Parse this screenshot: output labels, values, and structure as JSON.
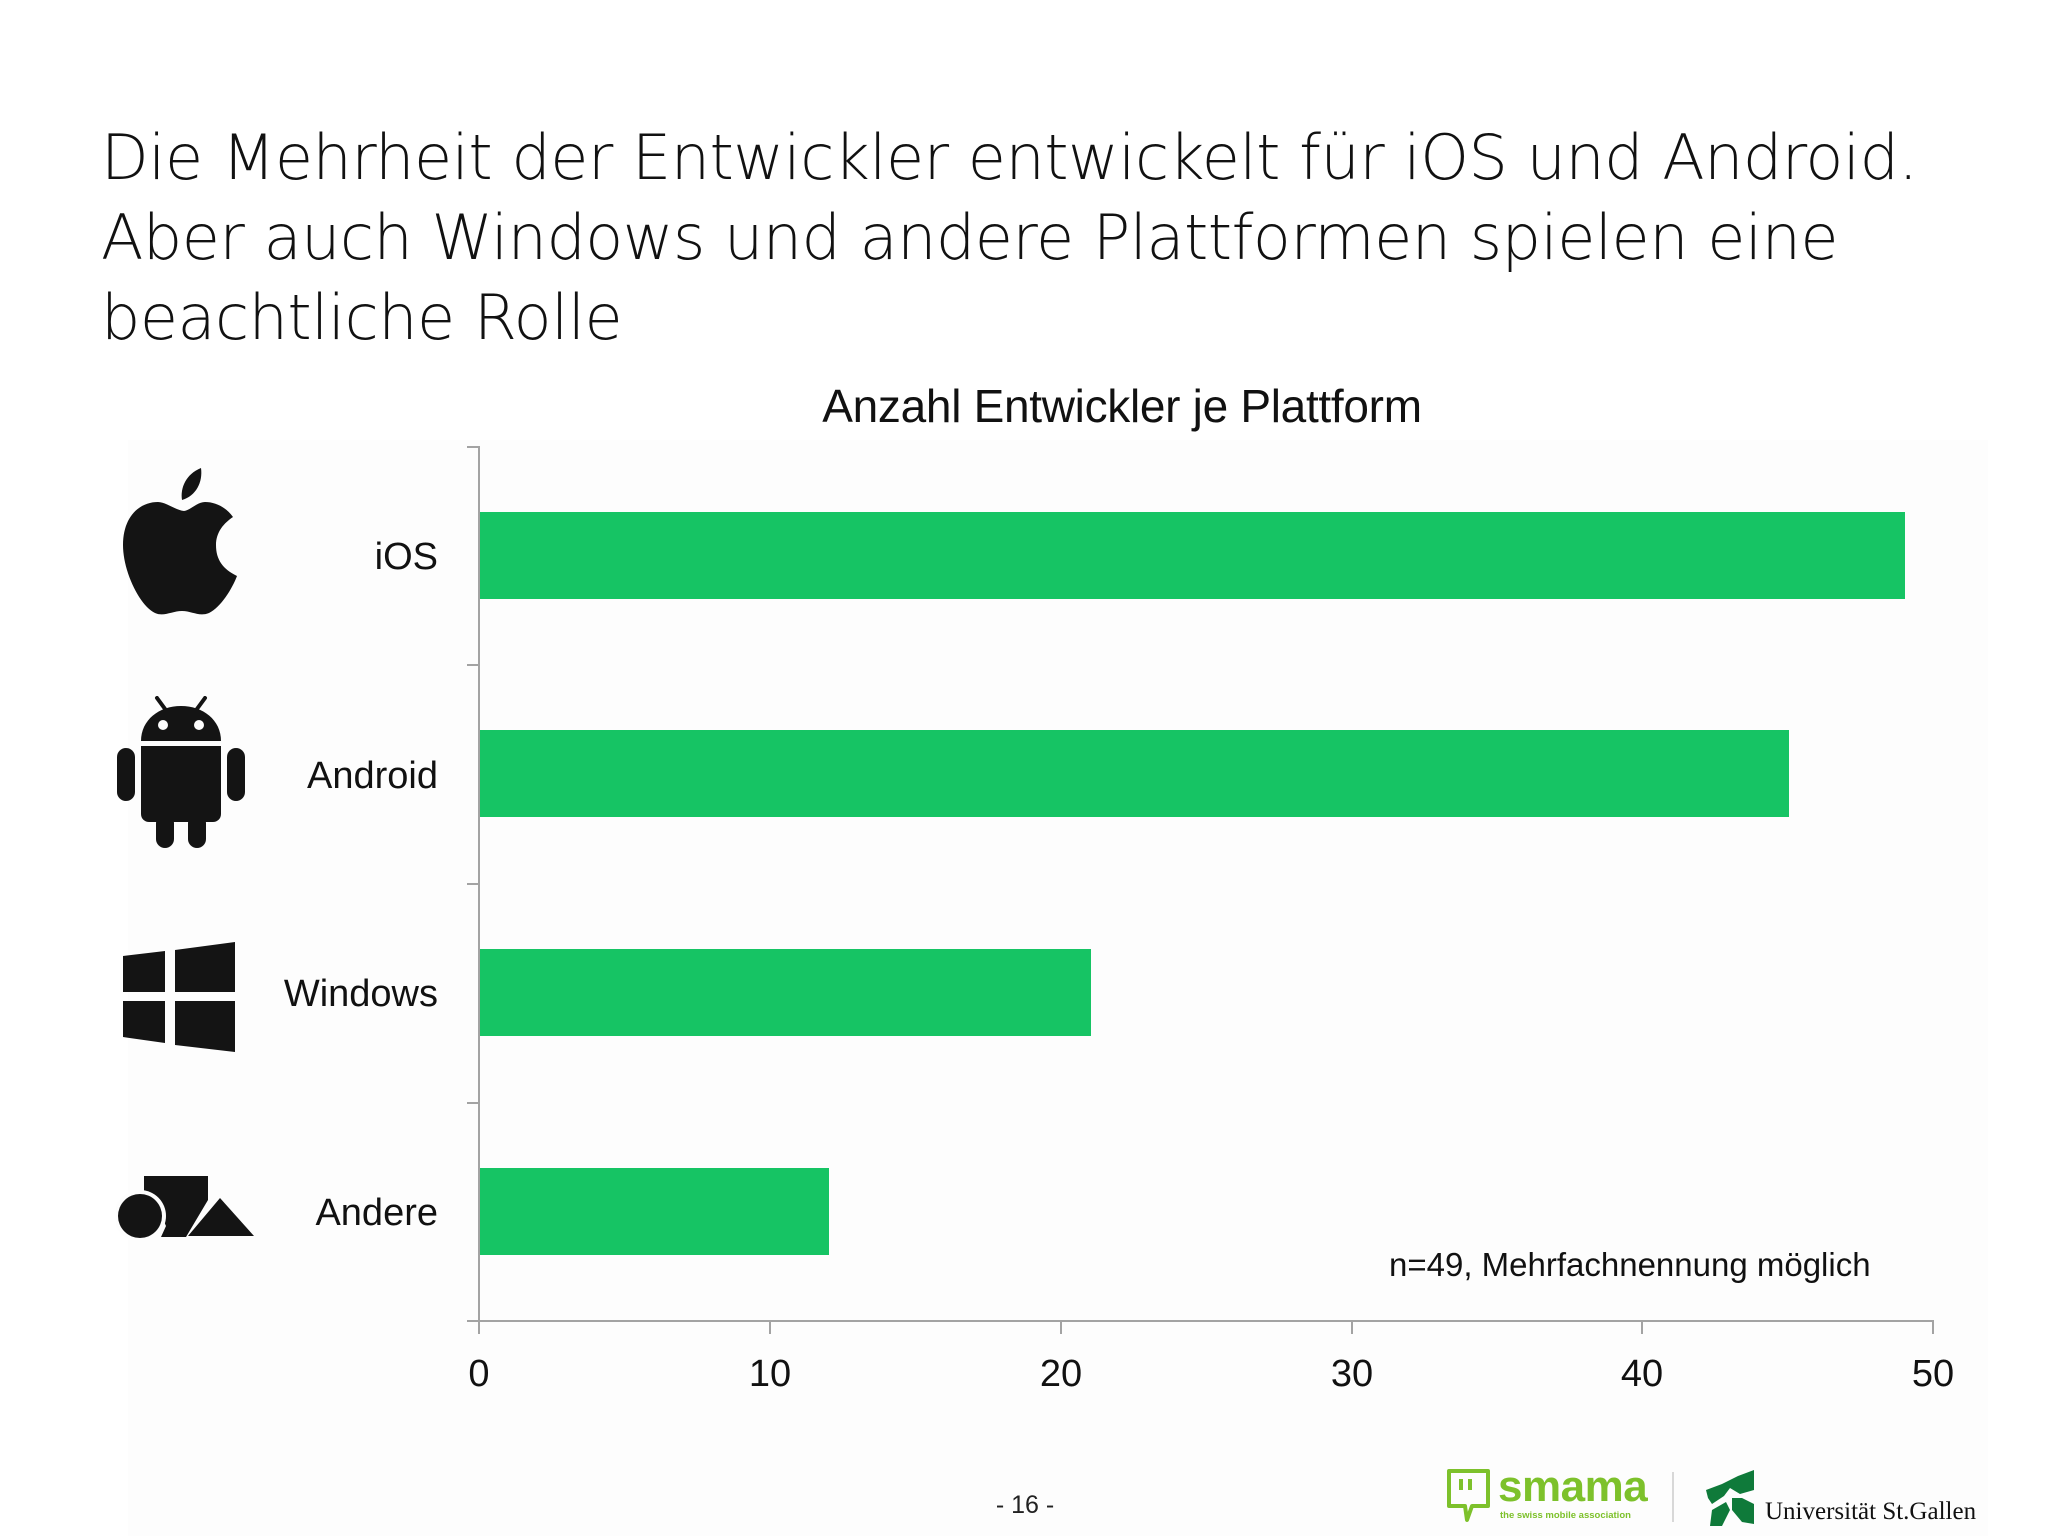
{
  "slide": {
    "headline": [
      "Die Mehrheit der Entwickler entwickelt für iOS und Android.",
      "Aber auch Windows und andere Plattformen spielen eine",
      "beachtliche Rolle"
    ],
    "page_number": "- 16 -",
    "footer": {
      "smama_logo": "smama",
      "smama_tagline": "the swiss mobile association",
      "hsg_logo": "Universität St.Gallen"
    },
    "colors": {
      "bar": "#16c464",
      "axis": "#a3a3a3",
      "smama_green": "#7dc12b",
      "hsg_green": "#0f7a3a"
    }
  },
  "chart_data": {
    "type": "bar",
    "orientation": "horizontal",
    "title": "Anzahl Entwickler je Plattform",
    "categories": [
      "iOS",
      "Android",
      "Windows",
      "Andere"
    ],
    "category_icons": [
      "apple-icon",
      "android-icon",
      "windows-icon",
      "shapes-icon"
    ],
    "values": [
      49,
      45,
      21,
      12
    ],
    "xlabel": "",
    "ylabel": "",
    "xlim": [
      0,
      50
    ],
    "x_ticks": [
      "0",
      "10",
      "20",
      "30",
      "40",
      "50"
    ],
    "grid": false,
    "legend": null,
    "annotation": "n=49, Mehrfachnennung möglich"
  }
}
